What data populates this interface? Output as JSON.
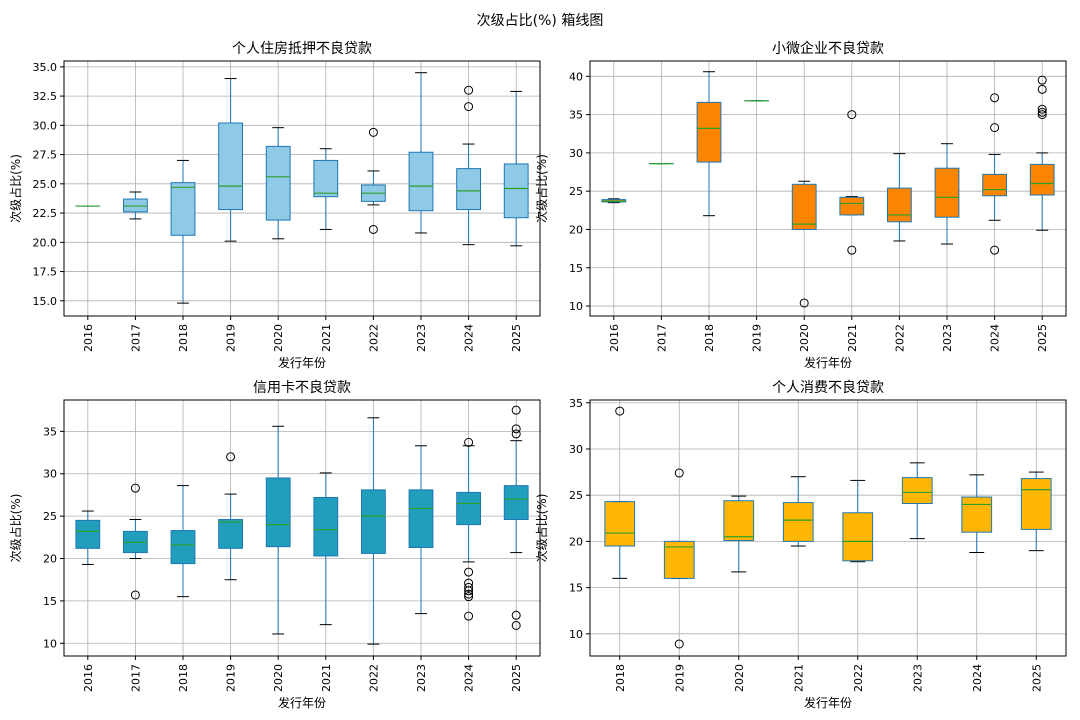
{
  "figure_title": "次级占比(%) 箱线图",
  "chart_data": [
    {
      "type": "box",
      "title": "个人住房抵押不良贷款",
      "xlabel": "发行年份",
      "ylabel": "次级占比(%)",
      "ylim": [
        13.7,
        35.5
      ],
      "yticks": [
        15.0,
        17.5,
        20.0,
        22.5,
        25.0,
        27.5,
        30.0,
        32.5,
        35.0
      ],
      "tick_format": "fixed1",
      "color": "#8ecae6",
      "categories": [
        "2016",
        "2017",
        "2018",
        "2019",
        "2020",
        "2021",
        "2022",
        "2023",
        "2024",
        "2025"
      ],
      "boxes": [
        {
          "category": "2016",
          "whisker_low": 23.1,
          "q1": 23.1,
          "median": 23.1,
          "q3": 23.1,
          "whisker_high": 23.1,
          "outliers": []
        },
        {
          "category": "2017",
          "whisker_low": 22.0,
          "q1": 22.6,
          "median": 23.1,
          "q3": 23.7,
          "whisker_high": 24.3,
          "outliers": []
        },
        {
          "category": "2018",
          "whisker_low": 14.8,
          "q1": 20.6,
          "median": 24.7,
          "q3": 25.1,
          "whisker_high": 27.0,
          "outliers": []
        },
        {
          "category": "2019",
          "whisker_low": 20.1,
          "q1": 22.8,
          "median": 24.8,
          "q3": 30.2,
          "whisker_high": 34.0,
          "outliers": []
        },
        {
          "category": "2020",
          "whisker_low": 20.3,
          "q1": 21.9,
          "median": 25.6,
          "q3": 28.2,
          "whisker_high": 29.8,
          "outliers": []
        },
        {
          "category": "2021",
          "whisker_low": 21.1,
          "q1": 23.9,
          "median": 24.2,
          "q3": 27.0,
          "whisker_high": 28.0,
          "outliers": []
        },
        {
          "category": "2022",
          "whisker_low": 23.2,
          "q1": 23.5,
          "median": 24.2,
          "q3": 24.9,
          "whisker_high": 26.1,
          "outliers": [
            29.4,
            21.1
          ]
        },
        {
          "category": "2023",
          "whisker_low": 20.8,
          "q1": 22.7,
          "median": 24.8,
          "q3": 27.7,
          "whisker_high": 34.5,
          "outliers": []
        },
        {
          "category": "2024",
          "whisker_low": 19.8,
          "q1": 22.8,
          "median": 24.4,
          "q3": 26.3,
          "whisker_high": 28.4,
          "outliers": [
            33.0,
            31.6
          ]
        },
        {
          "category": "2025",
          "whisker_low": 19.7,
          "q1": 22.1,
          "median": 24.6,
          "q3": 26.7,
          "whisker_high": 32.9,
          "outliers": []
        }
      ]
    },
    {
      "type": "box",
      "title": "小微企业不良贷款",
      "xlabel": "发行年份",
      "ylabel": "次级占比(%)",
      "ylim": [
        8.7,
        42.0
      ],
      "yticks": [
        10,
        15,
        20,
        25,
        30,
        35,
        40
      ],
      "tick_format": "int",
      "color": "#fb8500",
      "categories": [
        "2016",
        "2017",
        "2018",
        "2019",
        "2020",
        "2021",
        "2022",
        "2023",
        "2024",
        "2025"
      ],
      "boxes": [
        {
          "category": "2016",
          "whisker_low": 23.5,
          "q1": 23.6,
          "median": 23.7,
          "q3": 23.9,
          "whisker_high": 24.0,
          "outliers": []
        },
        {
          "category": "2017",
          "whisker_low": 28.6,
          "q1": 28.6,
          "median": 28.6,
          "q3": 28.6,
          "whisker_high": 28.6,
          "outliers": []
        },
        {
          "category": "2018",
          "whisker_low": 21.8,
          "q1": 28.8,
          "median": 33.2,
          "q3": 36.6,
          "whisker_high": 40.6,
          "outliers": []
        },
        {
          "category": "2019",
          "whisker_low": 36.8,
          "q1": 36.8,
          "median": 36.8,
          "q3": 36.8,
          "whisker_high": 36.8,
          "outliers": []
        },
        {
          "category": "2020",
          "whisker_low": 20.0,
          "q1": 20.0,
          "median": 20.7,
          "q3": 25.9,
          "whisker_high": 26.3,
          "outliers": [
            10.4
          ]
        },
        {
          "category": "2021",
          "whisker_low": 21.9,
          "q1": 21.9,
          "median": 23.4,
          "q3": 24.2,
          "whisker_high": 24.3,
          "outliers": [
            35.0,
            17.3
          ]
        },
        {
          "category": "2022",
          "whisker_low": 18.5,
          "q1": 21.0,
          "median": 21.9,
          "q3": 25.4,
          "whisker_high": 29.9,
          "outliers": []
        },
        {
          "category": "2023",
          "whisker_low": 18.1,
          "q1": 21.6,
          "median": 24.2,
          "q3": 28.0,
          "whisker_high": 31.2,
          "outliers": []
        },
        {
          "category": "2024",
          "whisker_low": 21.2,
          "q1": 24.4,
          "median": 25.2,
          "q3": 27.2,
          "whisker_high": 29.8,
          "outliers": [
            37.2,
            33.3,
            17.3
          ]
        },
        {
          "category": "2025",
          "whisker_low": 19.9,
          "q1": 24.5,
          "median": 26.0,
          "q3": 28.5,
          "whisker_high": 30.0,
          "outliers": [
            39.5,
            38.3,
            35.7,
            35.3,
            35.0
          ]
        }
      ]
    },
    {
      "type": "box",
      "title": "信用卡不良贷款",
      "xlabel": "发行年份",
      "ylabel": "次级占比(%)",
      "ylim": [
        8.5,
        38.7
      ],
      "yticks": [
        10,
        15,
        20,
        25,
        30,
        35
      ],
      "tick_format": "int",
      "color": "#219ebc",
      "categories": [
        "2016",
        "2017",
        "2018",
        "2019",
        "2020",
        "2021",
        "2022",
        "2023",
        "2024",
        "2025"
      ],
      "boxes": [
        {
          "category": "2016",
          "whisker_low": 19.3,
          "q1": 21.2,
          "median": 23.2,
          "q3": 24.5,
          "whisker_high": 25.6,
          "outliers": []
        },
        {
          "category": "2017",
          "whisker_low": 20.0,
          "q1": 20.7,
          "median": 21.9,
          "q3": 23.2,
          "whisker_high": 24.6,
          "outliers": [
            28.3,
            15.7
          ]
        },
        {
          "category": "2018",
          "whisker_low": 15.5,
          "q1": 19.4,
          "median": 21.6,
          "q3": 23.3,
          "whisker_high": 28.6,
          "outliers": []
        },
        {
          "category": "2019",
          "whisker_low": 17.5,
          "q1": 21.2,
          "median": 24.3,
          "q3": 24.6,
          "whisker_high": 27.6,
          "outliers": [
            32.0
          ]
        },
        {
          "category": "2020",
          "whisker_low": 11.1,
          "q1": 21.4,
          "median": 24.0,
          "q3": 29.5,
          "whisker_high": 35.6,
          "outliers": []
        },
        {
          "category": "2021",
          "whisker_low": 12.2,
          "q1": 20.3,
          "median": 23.4,
          "q3": 27.2,
          "whisker_high": 30.1,
          "outliers": []
        },
        {
          "category": "2022",
          "whisker_low": 9.9,
          "q1": 20.6,
          "median": 25.0,
          "q3": 28.1,
          "whisker_high": 36.6,
          "outliers": []
        },
        {
          "category": "2023",
          "whisker_low": 13.5,
          "q1": 21.3,
          "median": 25.9,
          "q3": 28.1,
          "whisker_high": 33.3,
          "outliers": []
        },
        {
          "category": "2024",
          "whisker_low": 19.6,
          "q1": 24.0,
          "median": 26.5,
          "q3": 27.8,
          "whisker_high": 33.3,
          "outliers": [
            33.7,
            18.4,
            17.1,
            16.6,
            16.2,
            15.8,
            15.5,
            13.2
          ]
        },
        {
          "category": "2025",
          "whisker_low": 20.7,
          "q1": 24.6,
          "median": 27.0,
          "q3": 28.6,
          "whisker_high": 33.9,
          "outliers": [
            37.5,
            35.3,
            34.7,
            13.3,
            12.1
          ]
        }
      ]
    },
    {
      "type": "box",
      "title": "个人消费不良贷款",
      "xlabel": "发行年份",
      "ylabel": "次级占比(%)",
      "ylim": [
        7.6,
        35.3
      ],
      "yticks": [
        10,
        15,
        20,
        25,
        30,
        35
      ],
      "tick_format": "int",
      "color": "#ffb703",
      "categories": [
        "2018",
        "2019",
        "2020",
        "2021",
        "2022",
        "2023",
        "2024",
        "2025"
      ],
      "boxes": [
        {
          "category": "2018",
          "whisker_low": 16.0,
          "q1": 19.5,
          "median": 20.9,
          "q3": 24.3,
          "whisker_high": 24.3,
          "outliers": [
            34.1
          ]
        },
        {
          "category": "2019",
          "whisker_low": 16.0,
          "q1": 16.0,
          "median": 19.4,
          "q3": 20.0,
          "whisker_high": 20.0,
          "outliers": [
            27.4,
            8.9
          ]
        },
        {
          "category": "2020",
          "whisker_low": 16.7,
          "q1": 20.1,
          "median": 20.5,
          "q3": 24.4,
          "whisker_high": 24.9,
          "outliers": []
        },
        {
          "category": "2021",
          "whisker_low": 19.5,
          "q1": 20.0,
          "median": 22.3,
          "q3": 24.2,
          "whisker_high": 27.0,
          "outliers": []
        },
        {
          "category": "2022",
          "whisker_low": 17.8,
          "q1": 17.9,
          "median": 20.0,
          "q3": 23.1,
          "whisker_high": 26.6,
          "outliers": []
        },
        {
          "category": "2023",
          "whisker_low": 20.3,
          "q1": 24.1,
          "median": 25.3,
          "q3": 26.9,
          "whisker_high": 28.5,
          "outliers": []
        },
        {
          "category": "2024",
          "whisker_low": 18.8,
          "q1": 21.0,
          "median": 24.0,
          "q3": 24.8,
          "whisker_high": 27.2,
          "outliers": []
        },
        {
          "category": "2025",
          "whisker_low": 19.0,
          "q1": 21.3,
          "median": 25.6,
          "q3": 26.8,
          "whisker_high": 27.5,
          "outliers": []
        }
      ]
    }
  ]
}
